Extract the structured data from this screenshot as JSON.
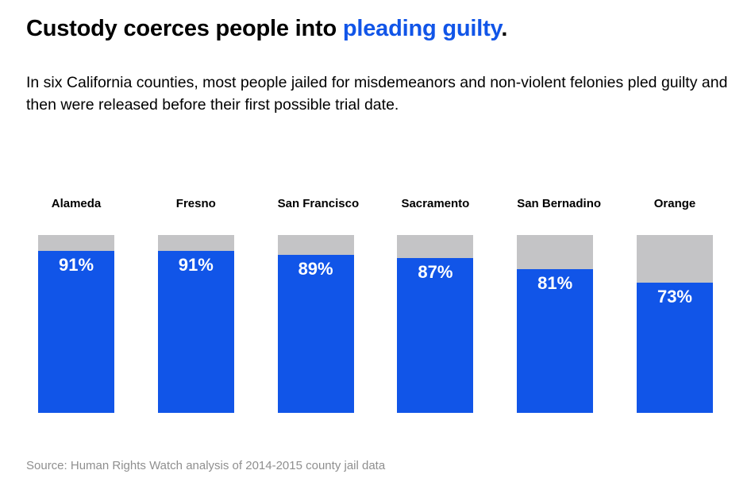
{
  "title": {
    "black": "Custody coerces people into ",
    "blue": "pleading guilty",
    "period": "."
  },
  "subtitle": "In six California counties, most people jailed for misdemeanors and non-violent felonies pled guilty and then were released before their first possible trial date.",
  "source": "Source: Human Rights Watch analysis of 2014-2015 county jail data",
  "colors": {
    "blue": "#1155e8",
    "gray": "#c4c4c6",
    "source_gray": "#8f8f8f"
  },
  "chart_data": {
    "type": "bar",
    "categories": [
      "Alameda",
      "Fresno",
      "San Francisco",
      "Sacramento",
      "San Bernadino",
      "Orange"
    ],
    "values": [
      91,
      91,
      89,
      87,
      81,
      73
    ],
    "value_labels": [
      "91%",
      "91%",
      "89%",
      "87%",
      "81%",
      "73%"
    ],
    "title": "Custody coerces people into pleading guilty.",
    "xlabel": "",
    "ylabel": "",
    "ylim": [
      0,
      100
    ],
    "grid": false,
    "legend": "none",
    "layout": "each bar shows a full-height 100% gray track with a blue fill from the bottom equal to the value; white percentage label at top of blue fill; category label above each bar"
  }
}
